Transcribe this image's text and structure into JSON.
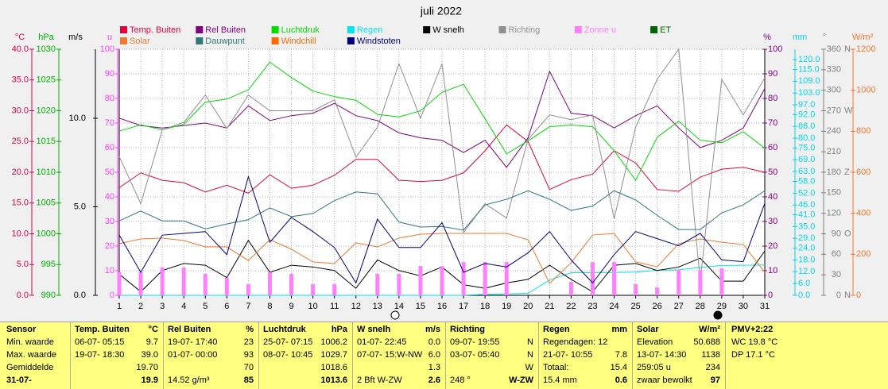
{
  "chart_data": {
    "type": "line",
    "title": "juli 2022",
    "categories": [
      "1",
      "2",
      "3",
      "4",
      "5",
      "6",
      "7",
      "8",
      "9",
      "10",
      "11",
      "12",
      "13",
      "14",
      "15",
      "16",
      "17",
      "18",
      "19",
      "20",
      "21",
      "22",
      "23",
      "24",
      "25",
      "26",
      "27",
      "28",
      "29",
      "30",
      "31"
    ],
    "grid": true,
    "axes": {
      "temp": {
        "label": "°C",
        "color": "#e0004c",
        "lim": [
          0,
          40
        ],
        "ticks": [
          {
            "value": 0,
            "label": "0.0"
          },
          {
            "value": 5,
            "label": "5.0"
          },
          {
            "value": 10,
            "label": "10.0"
          },
          {
            "value": 15,
            "label": "15.0"
          },
          {
            "value": 20,
            "label": "20.0"
          },
          {
            "value": 25,
            "label": "25.0"
          },
          {
            "value": 30,
            "label": "30.0"
          },
          {
            "value": 35,
            "label": "35.0"
          },
          {
            "value": 40,
            "label": "40.0"
          }
        ]
      },
      "press": {
        "label": "hPa",
        "color": "#00b000",
        "lim": [
          990,
          1030
        ],
        "ticks": [
          990,
          995,
          1000,
          1005,
          1010,
          1015,
          1020,
          1025,
          1030
        ]
      },
      "wind": {
        "label": "m/s",
        "color": "#000000",
        "lim": [
          0,
          13.9
        ],
        "ticks": [
          {
            "value": 0,
            "label": "0.0"
          },
          {
            "value": 5,
            "label": "5.0"
          },
          {
            "value": 10,
            "label": "10.0"
          }
        ]
      },
      "sun": {
        "label": "u",
        "color": "#ff40ff",
        "lim": [
          0,
          100
        ],
        "ticks": [
          0,
          10,
          20,
          30,
          40,
          50,
          60,
          70,
          80,
          90,
          100
        ]
      },
      "rh": {
        "label": "%",
        "color": "#800080",
        "lim": [
          0,
          100
        ],
        "ticks": [
          0,
          10,
          20,
          30,
          40,
          50,
          60,
          70,
          80,
          90,
          100
        ]
      },
      "rain": {
        "label": "mm",
        "color": "#00d8e8",
        "lim": [
          0,
          125.3
        ],
        "ticks": [
          {
            "value": 0,
            "label": "0.0"
          },
          {
            "value": 6,
            "label": "6.0"
          },
          {
            "value": 12,
            "label": "12.0"
          },
          {
            "value": 18,
            "label": "18.0"
          },
          {
            "value": 24,
            "label": "24.0"
          },
          {
            "value": 29,
            "label": "29.0"
          },
          {
            "value": 35,
            "label": "35.0"
          },
          {
            "value": 41,
            "label": "41.0"
          },
          {
            "value": 46,
            "label": "46.0"
          },
          {
            "value": 52,
            "label": "52.0"
          },
          {
            "value": 58,
            "label": "58.0"
          },
          {
            "value": 63,
            "label": "63.0"
          },
          {
            "value": 69,
            "label": "69.0"
          },
          {
            "value": 75,
            "label": "75.0"
          },
          {
            "value": 80,
            "label": "80.0"
          },
          {
            "value": 86,
            "label": "86.0"
          },
          {
            "value": 92,
            "label": "92.0"
          },
          {
            "value": 97,
            "label": "97.0"
          },
          {
            "value": 103,
            "label": "103.0"
          },
          {
            "value": 109,
            "label": "109.0"
          },
          {
            "value": 115,
            "label": "115.0"
          },
          {
            "value": 120,
            "label": "120.0"
          }
        ]
      },
      "dir": {
        "label": "°",
        "color": "#808080",
        "lim": [
          0,
          360
        ],
        "ticks": [
          0,
          30,
          60,
          90,
          120,
          150,
          180,
          210,
          240,
          270,
          300,
          330,
          360
        ],
        "compass": [
          {
            "value": 0,
            "label": "N"
          },
          {
            "value": 90,
            "label": "O"
          },
          {
            "value": 180,
            "label": "Z"
          },
          {
            "value": 270,
            "label": "W"
          },
          {
            "value": 360,
            "label": "N"
          }
        ]
      },
      "solar": {
        "label": "W/m²",
        "color": "#f07830",
        "lim": [
          0,
          1200
        ],
        "ticks": [
          0,
          200,
          400,
          600,
          800,
          1000,
          1200
        ]
      }
    },
    "series": [
      {
        "name": "Temp. Buiten",
        "color": "#e8003c",
        "axis": "temp",
        "values": [
          17.5,
          19.9,
          18.7,
          18.3,
          16.8,
          17.9,
          16.6,
          19.6,
          17.4,
          17.9,
          19.5,
          22.1,
          22.1,
          18.7,
          18.5,
          18.7,
          19.9,
          23.5,
          27.7,
          25.0,
          17.2,
          18.8,
          19.7,
          23.5,
          21.5,
          17.2,
          16.9,
          19.2,
          20.5,
          20.8,
          20.0
        ]
      },
      {
        "name": "Rel Buiten",
        "color": "#800080",
        "axis": "rh",
        "values": [
          72,
          69,
          68,
          69,
          70,
          68,
          77,
          71,
          73,
          74,
          78,
          73,
          71,
          66,
          64,
          63,
          58,
          63,
          52,
          64,
          91,
          74,
          73,
          68,
          73,
          77,
          68,
          60,
          63,
          68,
          84
        ]
      },
      {
        "name": "Luchtdruk",
        "color": "#00dd00",
        "axis": "press",
        "values": [
          1016.7,
          1017.7,
          1016.9,
          1017.8,
          1021.4,
          1021.9,
          1023.4,
          1027.9,
          1025.4,
          1023.2,
          1022.3,
          1021.7,
          1019.4,
          1019.0,
          1020.0,
          1023.0,
          1024.3,
          1018.7,
          1013.0,
          1015.1,
          1017.4,
          1017.7,
          1017.4,
          1013.5,
          1008.7,
          1015.7,
          1018.3,
          1015.2,
          1014.8,
          1016.6,
          1013.9
        ]
      },
      {
        "name": "Regen",
        "color": "#00e5ee",
        "axis": "rain",
        "values": [
          0,
          0,
          0,
          0,
          0,
          0,
          0,
          0,
          0,
          0,
          0,
          0,
          0,
          0,
          0,
          0,
          0,
          0.5,
          0.7,
          1.0,
          7.8,
          11.5,
          11.5,
          11.6,
          11.8,
          12.8,
          13.0,
          14.2,
          15.2,
          15.3,
          15.4
        ]
      },
      {
        "name": "W snelh",
        "color": "#000000",
        "axis": "wind",
        "values": [
          1.2,
          0.2,
          1.4,
          1.8,
          1.7,
          1.0,
          3.1,
          1.3,
          1.7,
          1.6,
          1.4,
          0.4,
          2.0,
          1.4,
          1.1,
          1.6,
          0.6,
          0.4,
          0.7,
          0.9,
          1.7,
          0.9,
          0.2,
          1.7,
          1.8,
          1.4,
          1.6,
          2.1,
          0.8,
          0.8,
          2.5
        ]
      },
      {
        "name": "Richting",
        "color": "#909090",
        "axis": "dir",
        "values": [
          203,
          134,
          242,
          253,
          293,
          244,
          293,
          270,
          270,
          270,
          286,
          202,
          246,
          339,
          259,
          339,
          92,
          134,
          113,
          228,
          264,
          257,
          264,
          112,
          246,
          316,
          360,
          20,
          316,
          264,
          318
        ]
      },
      {
        "name": "Zonne u",
        "color": "#ff80ff",
        "axis": "sun",
        "kind": "bar",
        "values": [
          9.4,
          9.4,
          11.3,
          11.3,
          8.7,
          7.1,
          4.5,
          9.4,
          8.7,
          4.5,
          4.5,
          0,
          8.7,
          8.7,
          11.9,
          11.9,
          13.5,
          13.5,
          13.5,
          0,
          0,
          5.5,
          13.5,
          13.5,
          4.5,
          3.2,
          10.3,
          10.3,
          11.0,
          0,
          0
        ]
      },
      {
        "name": "ET",
        "color": "#006400",
        "axis": "sun",
        "values": [
          null,
          null,
          null,
          null,
          null,
          null,
          null,
          null,
          null,
          null,
          null,
          null,
          null,
          null,
          null,
          null,
          null,
          null,
          null,
          null,
          null,
          null,
          null,
          null,
          null,
          null,
          null,
          null,
          null,
          null,
          null
        ]
      },
      {
        "name": "Solar",
        "color": "#f07830",
        "axis": "solar",
        "values": [
          252,
          275,
          279,
          267,
          236,
          236,
          170,
          271,
          225,
          163,
          155,
          256,
          236,
          279,
          298,
          302,
          302,
          302,
          302,
          271,
          58,
          159,
          294,
          302,
          163,
          139,
          252,
          275,
          259,
          248,
          112
        ]
      },
      {
        "name": "Dauwpunt",
        "color": "#307878",
        "axis": "temp",
        "values": [
          12.1,
          13.7,
          12.1,
          12.1,
          10.8,
          11.6,
          12.3,
          14.2,
          12.8,
          13.3,
          15.4,
          16.8,
          16.5,
          11.9,
          11.1,
          11.2,
          10.6,
          14.7,
          15.6,
          17.0,
          15.6,
          13.8,
          14.5,
          17.0,
          15.5,
          13.0,
          10.7,
          10.7,
          13.4,
          14.7,
          17.0
        ]
      },
      {
        "name": "Windchill",
        "color": "#ff6a00",
        "axis": "temp",
        "values": [
          null,
          null,
          null,
          null,
          null,
          null,
          null,
          null,
          null,
          null,
          null,
          null,
          null,
          null,
          null,
          null,
          null,
          null,
          null,
          null,
          null,
          null,
          null,
          null,
          null,
          null,
          null,
          null,
          null,
          null,
          null
        ]
      },
      {
        "name": "Windstoten",
        "color": "#000080",
        "axis": "wind",
        "values": [
          3.4,
          1.3,
          3.4,
          3.5,
          3.6,
          2.3,
          6.7,
          3.0,
          4.4,
          3.6,
          2.7,
          0.7,
          4.3,
          2.7,
          2.7,
          4.1,
          1.3,
          1.8,
          1.6,
          2.4,
          3.6,
          2.0,
          0.7,
          2.3,
          3.6,
          3.2,
          2.8,
          3.5,
          2.0,
          1.9,
          5.2
        ]
      }
    ]
  },
  "table": {
    "labels": [
      "Sensor",
      "Min. waarde",
      "Max. waarde",
      "Gemiddelde",
      "31-07-"
    ],
    "columns": [
      {
        "header": "Temp. Buiten",
        "unit": "°C",
        "rows": [
          [
            "06-07- 05:15",
            "9.7"
          ],
          [
            "19-07- 18:30",
            "39.0"
          ],
          [
            null,
            "19.70"
          ],
          [
            null,
            "19.9"
          ]
        ]
      },
      {
        "header": "Rel Buiten",
        "unit": "%",
        "rows": [
          [
            "19-07- 17:40",
            "23"
          ],
          [
            "01-07- 00:00",
            "93"
          ],
          [
            null,
            "70"
          ],
          [
            "14.52 g/m³",
            "85"
          ]
        ]
      },
      {
        "header": "Luchtdruk",
        "unit": "hPa",
        "rows": [
          [
            "25-07- 07:15",
            "1006.2"
          ],
          [
            "08-07- 10:45",
            "1029.7"
          ],
          [
            null,
            "1018.6"
          ],
          [
            null,
            "1013.6"
          ]
        ]
      },
      {
        "header": "W snelh",
        "unit": "m/s",
        "rows": [
          [
            "01-07- 22:45",
            "0.0"
          ],
          [
            "07-07- 15:W-NW",
            "6.0"
          ],
          [
            null,
            "1.3"
          ],
          [
            "2 Bft W-ZW",
            "2.6"
          ]
        ]
      },
      {
        "header": "Richting",
        "unit": null,
        "rows": [
          [
            "09-07- 19:55",
            "N"
          ],
          [
            "03-07- 05:40",
            "N"
          ],
          [
            null,
            "W"
          ],
          [
            "248 °",
            "W-ZW"
          ]
        ]
      },
      {
        "header": "Regen",
        "unit": "mm",
        "rows": [
          [
            "Regendagen: 12",
            null
          ],
          [
            "21-07- 10:55",
            "7.8"
          ],
          [
            "Totaal:",
            "15.4"
          ],
          [
            "15.4 mm",
            "0.6"
          ]
        ]
      },
      {
        "header": "Solar",
        "unit": "W/m²",
        "rows": [
          [
            "Elevation",
            "50.688"
          ],
          [
            "13-07- 14:30",
            "1138"
          ],
          [
            "259:05 u",
            "234"
          ],
          [
            "zwaar bewolkt",
            "97"
          ]
        ]
      }
    ],
    "pmv": [
      "PMV+2:22",
      "WC 19.8 °C",
      "DP 17.1 °C"
    ]
  }
}
